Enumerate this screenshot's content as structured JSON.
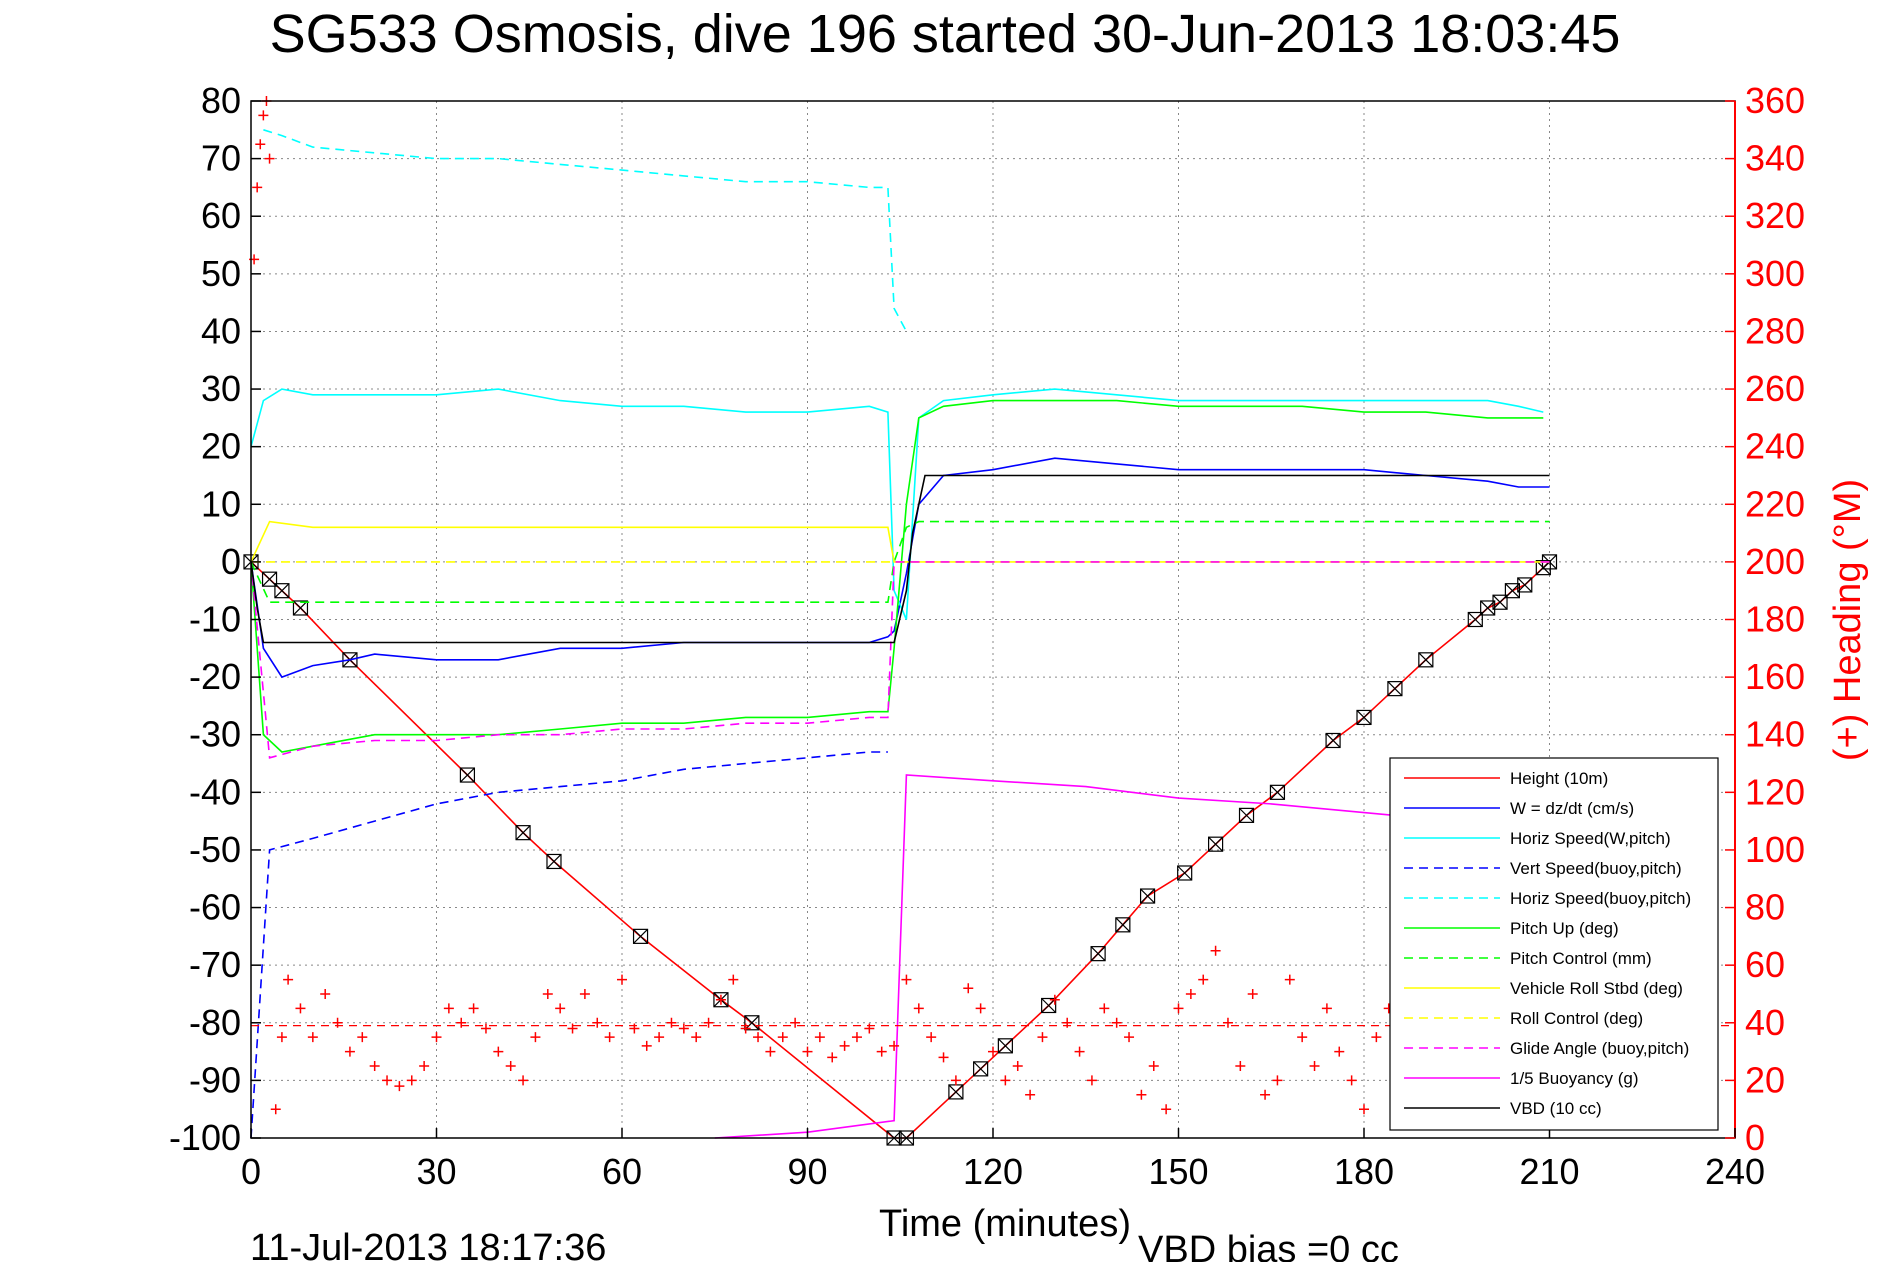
{
  "chart_data": {
    "type": "line",
    "title": "SG533 Osmosis, dive 196 started 30-Jun-2013 18:03:45",
    "xlabel": "Time (minutes)",
    "ylabel": "",
    "y2label": "(+) Heading (°M)",
    "xlim": [
      0,
      240
    ],
    "ylim": [
      -100,
      80
    ],
    "y2lim": [
      0,
      360
    ],
    "xticks": [
      0,
      30,
      60,
      90,
      120,
      150,
      180,
      210,
      240
    ],
    "yticks": [
      80,
      70,
      60,
      50,
      40,
      30,
      20,
      10,
      0,
      -10,
      -20,
      -30,
      -40,
      -50,
      -60,
      -70,
      -80,
      -90,
      -100
    ],
    "y2ticks": [
      360,
      340,
      320,
      300,
      280,
      260,
      240,
      220,
      200,
      180,
      160,
      140,
      120,
      100,
      80,
      60,
      40,
      20,
      0
    ],
    "grid": true,
    "legend_position": "lower-right",
    "footer_left": "11-Jul-2013 18:17:36",
    "footer_right": "VBD bias =0 cc",
    "colors": {
      "red": "#ff0000",
      "blue": "#0000ff",
      "cyan": "#00ffff",
      "green": "#00ff00",
      "yellow": "#ffff00",
      "magenta": "#ff00ff",
      "black": "#000000"
    },
    "series": [
      {
        "name": "Height (10m)",
        "color": "#ff0000",
        "style": "solid",
        "marker": "box-x",
        "x": [
          0,
          3,
          5,
          8,
          16,
          35,
          44,
          49,
          63,
          76,
          81,
          104,
          106,
          114,
          118,
          122,
          129,
          137,
          141,
          145,
          151,
          156,
          161,
          166,
          175,
          180,
          185,
          190,
          198,
          200,
          202,
          204,
          206,
          209,
          210
        ],
        "y": [
          0,
          -3,
          -5,
          -8,
          -17,
          -37,
          -47,
          -52,
          -65,
          -76,
          -80,
          -100,
          -100,
          -92,
          -88,
          -84,
          -77,
          -68,
          -63,
          -58,
          -54,
          -49,
          -44,
          -40,
          -31,
          -27,
          -22,
          -17,
          -10,
          -8,
          -7,
          -5,
          -4,
          -1,
          0
        ]
      },
      {
        "name": "W = dz/dt (cm/s)",
        "color": "#0000ff",
        "style": "solid",
        "x": [
          0,
          2,
          5,
          10,
          16,
          20,
          30,
          40,
          50,
          60,
          70,
          80,
          90,
          100,
          103,
          104,
          106,
          108,
          112,
          120,
          130,
          140,
          150,
          160,
          170,
          180,
          190,
          200,
          205,
          210
        ],
        "y": [
          0,
          -15,
          -20,
          -18,
          -17,
          -16,
          -17,
          -17,
          -15,
          -15,
          -14,
          -14,
          -14,
          -14,
          -13,
          -12,
          -2,
          10,
          15,
          16,
          18,
          17,
          16,
          16,
          16,
          16,
          15,
          14,
          13,
          13
        ]
      },
      {
        "name": "Horiz Speed(W,pitch)",
        "color": "#00ffff",
        "style": "solid",
        "x": [
          0,
          2,
          5,
          10,
          20,
          30,
          40,
          50,
          60,
          70,
          80,
          90,
          100,
          103,
          104,
          106,
          108,
          112,
          120,
          130,
          140,
          150,
          160,
          170,
          180,
          190,
          200,
          205,
          209
        ],
        "y": [
          20,
          28,
          30,
          29,
          29,
          29,
          30,
          28,
          27,
          27,
          26,
          26,
          27,
          26,
          -5,
          -10,
          25,
          28,
          29,
          30,
          29,
          28,
          28,
          28,
          28,
          28,
          28,
          27,
          26
        ]
      },
      {
        "name": "Vert Speed(buoy,pitch)",
        "color": "#0000ff",
        "style": "dashed",
        "x": [
          0,
          3,
          10,
          20,
          30,
          40,
          50,
          60,
          70,
          80,
          90,
          100,
          103
        ],
        "y": [
          -100,
          -50,
          -48,
          -45,
          -42,
          -40,
          -39,
          -38,
          -36,
          -35,
          -34,
          -33,
          -33
        ]
      },
      {
        "name": "Horiz Speed(buoy,pitch)",
        "color": "#00ffff",
        "style": "dashed",
        "x": [
          2,
          5,
          10,
          20,
          30,
          40,
          50,
          60,
          70,
          80,
          90,
          100,
          103,
          104,
          106
        ],
        "y": [
          75,
          74,
          72,
          71,
          70,
          70,
          69,
          68,
          67,
          66,
          66,
          65,
          65,
          44,
          40
        ]
      },
      {
        "name": "Pitch Up (deg)",
        "color": "#00ff00",
        "style": "solid",
        "x": [
          0,
          2,
          5,
          10,
          20,
          30,
          40,
          50,
          60,
          70,
          80,
          90,
          100,
          103,
          104,
          106,
          108,
          112,
          120,
          130,
          140,
          150,
          160,
          170,
          180,
          190,
          200,
          205,
          209
        ],
        "y": [
          0,
          -30,
          -33,
          -32,
          -30,
          -30,
          -30,
          -29,
          -28,
          -28,
          -27,
          -27,
          -26,
          -26,
          -15,
          10,
          25,
          27,
          28,
          28,
          28,
          27,
          27,
          27,
          26,
          26,
          25,
          25,
          25
        ]
      },
      {
        "name": "Pitch Control (mm)",
        "color": "#00ff00",
        "style": "dashed",
        "x": [
          0,
          3,
          10,
          30,
          60,
          90,
          103,
          104,
          106,
          108,
          120,
          150,
          180,
          210
        ],
        "y": [
          0,
          -7,
          -7,
          -7,
          -7,
          -7,
          -7,
          0,
          6,
          7,
          7,
          7,
          7,
          7
        ]
      },
      {
        "name": "Vehicle Roll Stbd (deg)",
        "color": "#ffff00",
        "style": "solid",
        "x": [
          0,
          3,
          10,
          20,
          30,
          40,
          50,
          60,
          70,
          80,
          90,
          100,
          103,
          104,
          106,
          120,
          150,
          180,
          210
        ],
        "y": [
          0,
          7,
          6,
          6,
          6,
          6,
          6,
          6,
          6,
          6,
          6,
          6,
          6,
          0,
          0,
          0,
          0,
          0,
          0
        ]
      },
      {
        "name": "Roll Control (deg)",
        "color": "#ffff00",
        "style": "dashed",
        "x": [
          0,
          210
        ],
        "y": [
          0,
          0
        ]
      },
      {
        "name": "Glide Angle (buoy,pitch)",
        "color": "#ff00ff",
        "style": "dashed",
        "x": [
          0,
          3,
          10,
          20,
          30,
          40,
          50,
          60,
          70,
          80,
          90,
          100,
          103,
          104,
          106,
          120,
          150,
          180,
          210
        ],
        "y": [
          0,
          -34,
          -32,
          -31,
          -31,
          -30,
          -30,
          -29,
          -29,
          -28,
          -28,
          -27,
          -27,
          0,
          0,
          0,
          0,
          0,
          0
        ]
      },
      {
        "name": "1/5 Buoyancy (g)",
        "color": "#ff00ff",
        "style": "solid",
        "x": [
          75,
          90,
          104,
          106,
          120,
          135,
          150,
          165,
          185
        ],
        "y": [
          -100,
          -99,
          -97,
          -37,
          -38,
          -39,
          -41,
          -42,
          -44
        ]
      },
      {
        "name": "VBD (10 cc)",
        "color": "#000000",
        "style": "solid",
        "x": [
          0,
          1,
          2,
          104,
          106,
          107,
          109,
          210
        ],
        "y": [
          0,
          -8,
          -14,
          -14,
          -5,
          5,
          15,
          15
        ]
      }
    ],
    "heading": {
      "label": "(+) Heading (°M)",
      "axis": "right",
      "color": "#ff0000",
      "marker": "plus",
      "mean_line": 39,
      "x": [
        0.5,
        1,
        1.5,
        2,
        2.5,
        3,
        4,
        5,
        6,
        8,
        10,
        12,
        14,
        16,
        18,
        20,
        22,
        24,
        26,
        28,
        30,
        32,
        34,
        36,
        38,
        40,
        42,
        44,
        46,
        48,
        50,
        52,
        54,
        56,
        58,
        60,
        62,
        64,
        66,
        68,
        70,
        72,
        74,
        76,
        78,
        80,
        82,
        84,
        86,
        88,
        90,
        92,
        94,
        96,
        98,
        100,
        102,
        104,
        106,
        108,
        110,
        112,
        114,
        116,
        118,
        120,
        122,
        124,
        126,
        128,
        130,
        132,
        134,
        136,
        138,
        140,
        142,
        144,
        146,
        148,
        150,
        152,
        154,
        156,
        158,
        160,
        162,
        164,
        166,
        168,
        170,
        172,
        174,
        176,
        178,
        180,
        182,
        184,
        186,
        188
      ],
      "y": [
        305,
        330,
        345,
        355,
        360,
        340,
        10,
        35,
        55,
        45,
        35,
        50,
        40,
        30,
        35,
        25,
        20,
        18,
        20,
        25,
        35,
        45,
        40,
        45,
        38,
        30,
        25,
        20,
        35,
        50,
        45,
        38,
        50,
        40,
        35,
        55,
        38,
        32,
        35,
        40,
        38,
        35,
        40,
        48,
        55,
        38,
        35,
        30,
        35,
        40,
        30,
        35,
        28,
        32,
        35,
        38,
        30,
        32,
        55,
        45,
        35,
        28,
        20,
        52,
        45,
        30,
        20,
        25,
        15,
        35,
        48,
        40,
        30,
        20,
        45,
        40,
        35,
        15,
        25,
        10,
        45,
        50,
        55,
        65,
        40,
        25,
        50,
        15,
        20,
        55,
        35,
        25,
        45,
        30,
        20,
        10,
        35,
        45,
        55,
        60
      ]
    }
  }
}
